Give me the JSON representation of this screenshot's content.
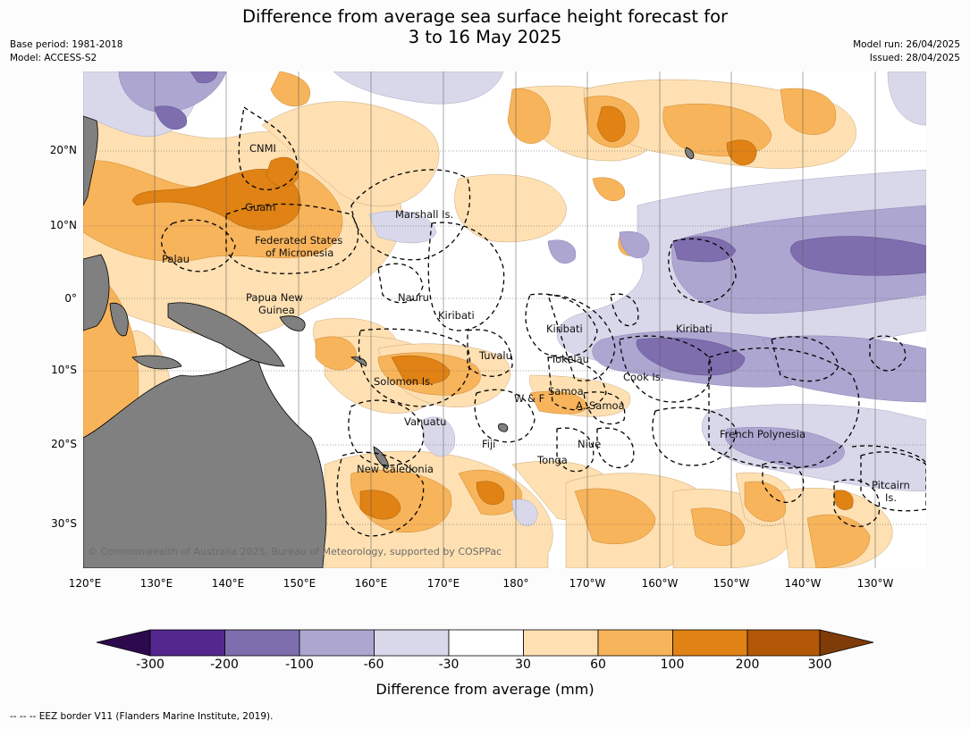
{
  "title_line1": "Difference from average sea surface height forecast for",
  "title_line2": "3 to 16 May 2025",
  "base_period": "Base period: 1981-2018",
  "model": "Model: ACCESS-S2",
  "model_run": "Model run: 26/04/2025",
  "issued": "Issued: 28/04/2025",
  "copyright": "© Commonwealth of Australia 2025, Bureau of Meteorology, supported by COSPPac",
  "lat_labels": [
    "20°N",
    "10°N",
    "0°",
    "10°S",
    "20°S",
    "30°S"
  ],
  "lon_labels": [
    "120°E",
    "130°E",
    "140°E",
    "150°E",
    "160°E",
    "170°E",
    "180°",
    "170°W",
    "160°W",
    "150°W",
    "140°W",
    "130°W"
  ],
  "places": {
    "cnmi": "CNMI",
    "guam": "Guam",
    "marshall": "Marshall Is.",
    "fsm1": "Federated States",
    "fsm2": "of Micronesia",
    "palau": "Palau",
    "png1": "Papua New",
    "png2": "Guinea",
    "nauru": "Nauru",
    "kiribati_w": "Kiribati",
    "kiribati_c": "Kiribati",
    "kiribati_e": "Kiribati",
    "tuvalu": "Tuvalu",
    "tokelau": "Tokelau",
    "solomon": "Solomon Is.",
    "samoa": "Samoa",
    "wf": "W & F",
    "asamoa": "A. Samoa",
    "cook": "Cook Is.",
    "vanuatu": "Vanuatu",
    "fiji": "Fiji",
    "niue": "Niue",
    "frpoly": "French Polynesia",
    "tonga": "Tonga",
    "newcal": "New Caledonia",
    "pitcairn1": "Pitcairn",
    "pitcairn2": "Is."
  },
  "legend": {
    "title": "Difference from average (mm)",
    "ticks": [
      "-300",
      "-200",
      "-100",
      "-60",
      "-30",
      "30",
      "60",
      "100",
      "200",
      "300"
    ],
    "colors": {
      "below_-300": "#2d0a4e",
      "-300_-200": "#54278f",
      "-200_-100": "#7f6eae",
      "-100_-60": "#ada6d0",
      "-60_-30": "#d8d8ea",
      "-30_30": "#ffffff",
      "30_60": "#fee0b2",
      "60_100": "#f8b45b",
      "100_200": "#e08214",
      "200_300": "#b35806",
      "above_300": "#7f3b08"
    }
  },
  "land_color": "#808080",
  "footnote": "-- -- -- EEZ border V11 (Flanders Marine Institute, 2019)."
}
